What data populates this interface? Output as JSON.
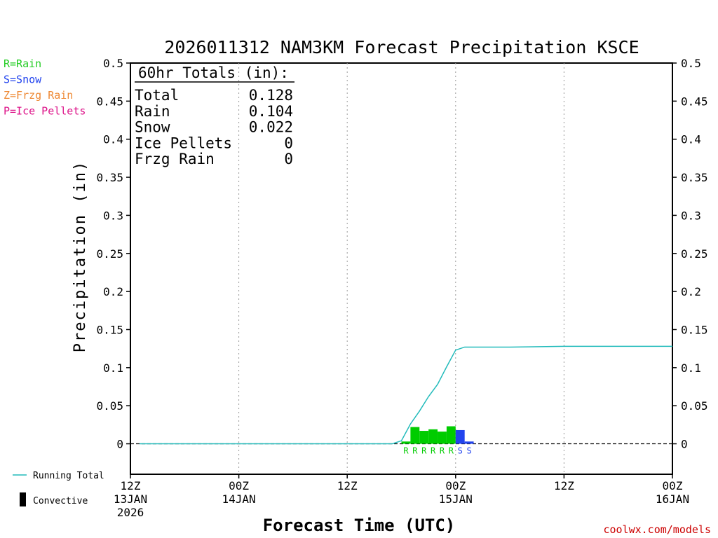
{
  "chart_data": {
    "type": "bar",
    "title": "2026011312 NAM3KM Forecast Precipitation KSCE",
    "ylabel": "Precipitation (in)",
    "xlabel": "Forecast Time (UTC)",
    "credit": "coolwx.com/models",
    "ylim": [
      -0.04,
      0.5
    ],
    "yticks": [
      "0",
      "0.05",
      "0.1",
      "0.15",
      "0.2",
      "0.25",
      "0.3",
      "0.35",
      "0.4",
      "0.45",
      "0.5"
    ],
    "x_range_hours": [
      0,
      60
    ],
    "xticks": [
      {
        "hour": 0,
        "lines": [
          "12Z",
          "13JAN",
          "2026"
        ]
      },
      {
        "hour": 12,
        "lines": [
          "00Z",
          "14JAN"
        ]
      },
      {
        "hour": 24,
        "lines": [
          "12Z"
        ]
      },
      {
        "hour": 36,
        "lines": [
          "00Z",
          "15JAN"
        ]
      },
      {
        "hour": 48,
        "lines": [
          "12Z"
        ]
      },
      {
        "hour": 60,
        "lines": [
          "00Z",
          "16JAN"
        ]
      }
    ],
    "type_legend": [
      {
        "text": "R=Rain",
        "color": "#22cc22"
      },
      {
        "text": "S=Snow",
        "color": "#2244ee"
      },
      {
        "text": "Z=Frzg Rain",
        "color": "#ee8833"
      },
      {
        "text": "P=Ice Pellets",
        "color": "#dd1188"
      }
    ],
    "series_legend": {
      "running_total": "Running Total",
      "convective": "Convective"
    },
    "totals_header": "60hr Totals (in):",
    "totals": [
      {
        "label": "Total",
        "value": "0.128"
      },
      {
        "label": "Rain",
        "value": "0.104"
      },
      {
        "label": "Snow",
        "value": "0.022"
      },
      {
        "label": "Ice Pellets",
        "value": "0"
      },
      {
        "label": "Frzg Rain",
        "value": "0"
      }
    ],
    "bars": [
      {
        "hour": 30.0,
        "value": 0.003,
        "type": "R"
      },
      {
        "hour": 31.0,
        "value": 0.022,
        "type": "R"
      },
      {
        "hour": 32.0,
        "value": 0.017,
        "type": "R"
      },
      {
        "hour": 33.0,
        "value": 0.019,
        "type": "R"
      },
      {
        "hour": 34.0,
        "value": 0.016,
        "type": "R"
      },
      {
        "hour": 35.0,
        "value": 0.023,
        "type": "R"
      },
      {
        "hour": 36.0,
        "value": 0.018,
        "type": "S"
      },
      {
        "hour": 37.0,
        "value": 0.003,
        "type": "S"
      }
    ],
    "type_colors": {
      "R": "#00cc00",
      "S": "#2244ee"
    },
    "type_letters": [
      {
        "hour": 31.0,
        "letter": "R"
      },
      {
        "hour": 32.0,
        "letter": "R"
      },
      {
        "hour": 33.0,
        "letter": "R"
      },
      {
        "hour": 34.0,
        "letter": "R"
      },
      {
        "hour": 35.0,
        "letter": "R"
      },
      {
        "hour": 36.0,
        "letter": "R"
      },
      {
        "hour": 37.0,
        "letter": "S"
      },
      {
        "hour": 38.0,
        "letter": "S"
      }
    ],
    "running_total": {
      "color": "#22bbbb",
      "x": [
        1,
        6,
        12,
        18,
        24,
        29,
        30,
        31,
        32,
        33,
        34,
        35,
        36,
        37,
        38,
        42,
        48,
        54,
        60
      ],
      "y": [
        0,
        0,
        0,
        0,
        0,
        0,
        0.004,
        0.026,
        0.043,
        0.062,
        0.078,
        0.101,
        0.123,
        0.127,
        0.127,
        0.127,
        0.128,
        0.128,
        0.128
      ]
    }
  }
}
